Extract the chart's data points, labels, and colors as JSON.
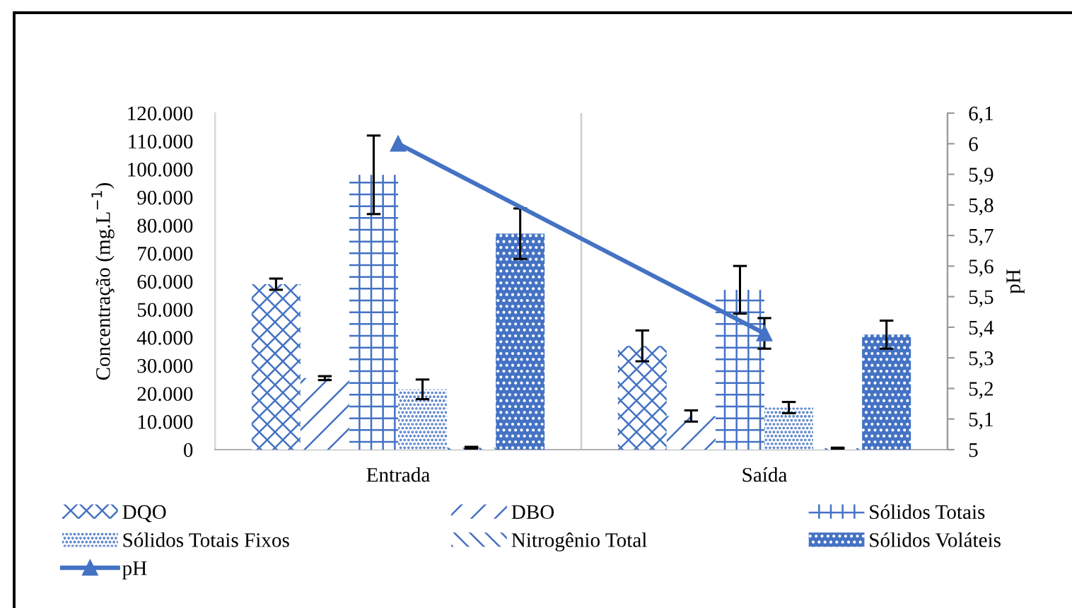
{
  "chart_data": {
    "type": "bar",
    "categories": [
      "Entrada",
      "Saída"
    ],
    "ylabel": "Concentração (mg.L$^{−1}$)",
    "y2label": "pH",
    "ylim": [
      0,
      120000
    ],
    "yticks": [
      0,
      {
        "value": 10000,
        "label": "10.000"
      },
      {
        "value": 20000,
        "label": "20.000"
      },
      {
        "value": 30000,
        "label": "30.000"
      },
      {
        "value": 40000,
        "label": "40.000"
      },
      {
        "value": 50000,
        "label": "50.000"
      },
      {
        "value": 60000,
        "label": "60.000"
      },
      {
        "value": 70000,
        "label": "70.000"
      },
      {
        "value": 80000,
        "label": "80.000"
      },
      {
        "value": 90000,
        "label": "90.000"
      },
      {
        "value": 100000,
        "label": "100.000"
      },
      {
        "value": 110000,
        "label": "110.000"
      },
      {
        "value": 120000,
        "label": "120.000"
      }
    ],
    "y2lim": [
      5,
      6.1
    ],
    "y2ticks": [
      5,
      {
        "value": 5.1,
        "label": "5,1"
      },
      {
        "value": 5.2,
        "label": "5,2"
      },
      {
        "value": 5.3,
        "label": "5,3"
      },
      {
        "value": 5.4,
        "label": "5,4"
      },
      {
        "value": 5.5,
        "label": "5,5"
      },
      {
        "value": 5.6,
        "label": "5,6"
      },
      {
        "value": 5.7,
        "label": "5,7"
      },
      {
        "value": 5.8,
        "label": "5,8"
      },
      {
        "value": 5.9,
        "label": "5,9"
      },
      6,
      {
        "value": 6.1,
        "label": "6,1"
      }
    ],
    "grid": "x",
    "legend": "bottom",
    "series": [
      {
        "name": "DQO",
        "color": "#4472c4",
        "values": [
          59000,
          37000
        ],
        "errors": [
          2000,
          5500
        ]
      },
      {
        "name": "DBO",
        "color": "#4472c4",
        "values": [
          25500,
          12000
        ],
        "errors": [
          700,
          2000
        ]
      },
      {
        "name": "Sólidos Totais",
        "color": "#4472c4",
        "values": [
          98000,
          57000
        ],
        "errors": [
          14000,
          8500
        ]
      },
      {
        "name": "Sólidos Totais Fixos",
        "color": "#4472c4",
        "values": [
          21500,
          15000
        ],
        "errors": [
          3500,
          2000
        ]
      },
      {
        "name": "Nitrogênio Total",
        "color": "#4472c4",
        "values": [
          700,
          500
        ],
        "errors": [
          300,
          200
        ]
      },
      {
        "name": "Sólidos Voláteis",
        "color": "#4472c4",
        "values": [
          77000,
          41000
        ],
        "errors": [
          9000,
          5000
        ]
      },
      {
        "name": "pH",
        "type": "line",
        "axis": "y2",
        "color": "#4472c4",
        "marker": "triangle",
        "values": [
          6.0,
          5.38
        ],
        "errors": [
          null,
          0.05
        ]
      }
    ]
  }
}
